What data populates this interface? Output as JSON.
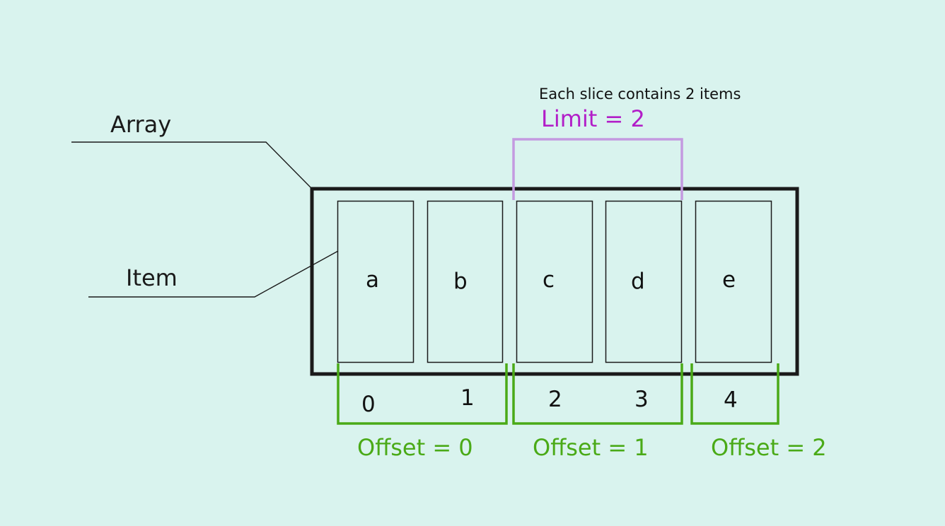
{
  "labels": {
    "array": "Array",
    "item": "Item",
    "note": "Each slice contains 2 items",
    "limit": "Limit = 2"
  },
  "items": [
    "a",
    "b",
    "c",
    "d",
    "e"
  ],
  "indices": [
    "0",
    "1",
    "2",
    "3",
    "4"
  ],
  "offsets": [
    "Offset = 0",
    "Offset = 1",
    "Offset = 2"
  ],
  "colors": {
    "background": "#d9f3ee",
    "outline": "#1a1a1a",
    "limit": "#b21ec8",
    "limit_bracket": "#c49ae0",
    "offset": "#4aaa17"
  }
}
